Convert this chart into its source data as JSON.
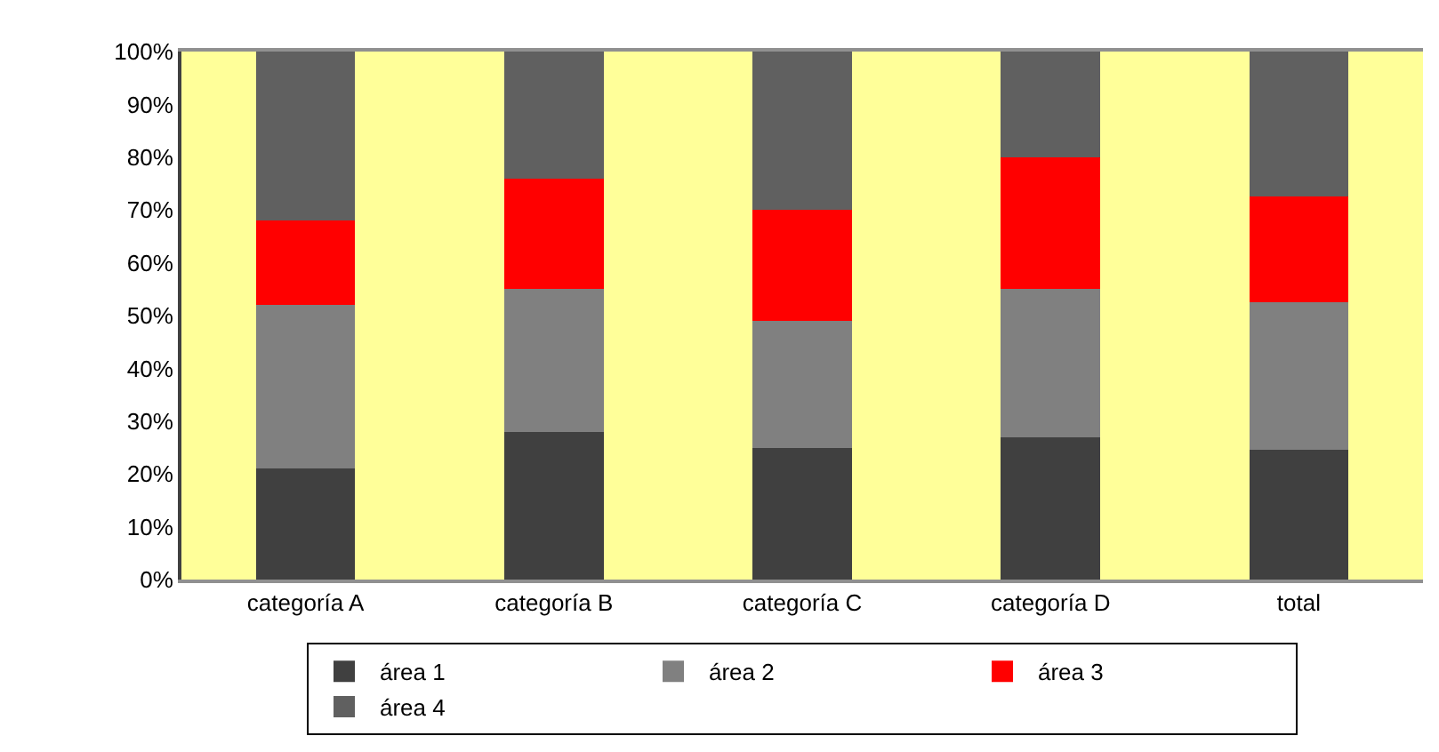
{
  "chart_data": {
    "type": "bar",
    "stacked": true,
    "categories": [
      "categoría A",
      "categoría B",
      "categoría C",
      "categoría D",
      "total"
    ],
    "series": [
      {
        "name": "área 1",
        "color": "#404040",
        "values": [
          21,
          28,
          25,
          27,
          24.5
        ]
      },
      {
        "name": "área 2",
        "color": "#808080",
        "values": [
          31,
          27,
          24,
          28,
          28
        ]
      },
      {
        "name": "área 3",
        "color": "#ff0000",
        "values": [
          16,
          21,
          21,
          25,
          20
        ]
      },
      {
        "name": "área 4",
        "color": "#606060",
        "values": [
          32,
          24,
          30,
          20,
          27.5
        ]
      }
    ],
    "ylim": [
      0,
      100
    ],
    "yticks": [
      {
        "value": 0,
        "label": "0%"
      },
      {
        "value": 10,
        "label": "10%"
      },
      {
        "value": 20,
        "label": "20%"
      },
      {
        "value": 30,
        "label": "30%"
      },
      {
        "value": 40,
        "label": "40%"
      },
      {
        "value": 50,
        "label": "50%"
      },
      {
        "value": 60,
        "label": "60%"
      },
      {
        "value": 70,
        "label": "70%"
      },
      {
        "value": 80,
        "label": "80%"
      },
      {
        "value": 90,
        "label": "90%"
      },
      {
        "value": 100,
        "label": "100%"
      }
    ],
    "grid": false,
    "legend": "bottom"
  }
}
